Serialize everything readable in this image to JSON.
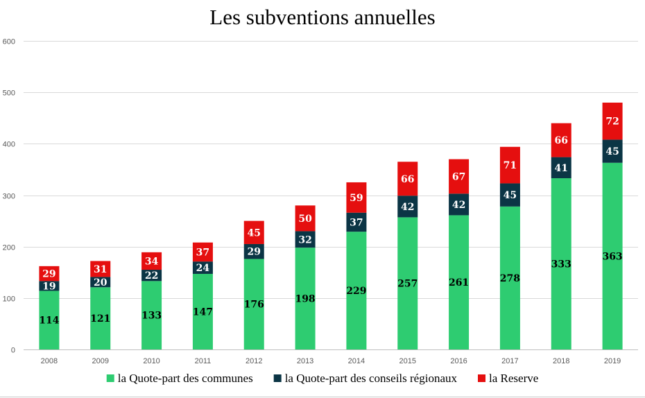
{
  "chart_data": {
    "type": "bar",
    "stacked": true,
    "title": "Les subventions annuelles",
    "xlabel": "",
    "ylabel": "",
    "categories": [
      "2008",
      "2009",
      "2010",
      "2011",
      "2012",
      "2013",
      "2014",
      "2015",
      "2016",
      "2017",
      "2018",
      "2019"
    ],
    "ylim": [
      0,
      600
    ],
    "yticks": [
      0,
      100,
      200,
      300,
      400,
      500,
      600
    ],
    "grid": true,
    "legend_position": "bottom",
    "data_labels": true,
    "series": [
      {
        "name": "la Quote-part des communes",
        "color": "#2ecc71",
        "label_color": "#000000",
        "values": [
          114,
          121,
          133,
          147,
          176,
          198,
          229,
          257,
          261,
          278,
          333,
          363
        ]
      },
      {
        "name": "la Quote-part des conseils régionaux",
        "color": "#0b3545",
        "label_color": "#ffffff",
        "values": [
          19,
          20,
          22,
          24,
          29,
          32,
          37,
          42,
          42,
          45,
          41,
          45
        ]
      },
      {
        "name": "la Reserve",
        "color": "#e50f0f",
        "label_color": "#ffffff",
        "values": [
          29,
          31,
          34,
          37,
          45,
          50,
          59,
          66,
          67,
          71,
          66,
          72
        ]
      }
    ]
  }
}
